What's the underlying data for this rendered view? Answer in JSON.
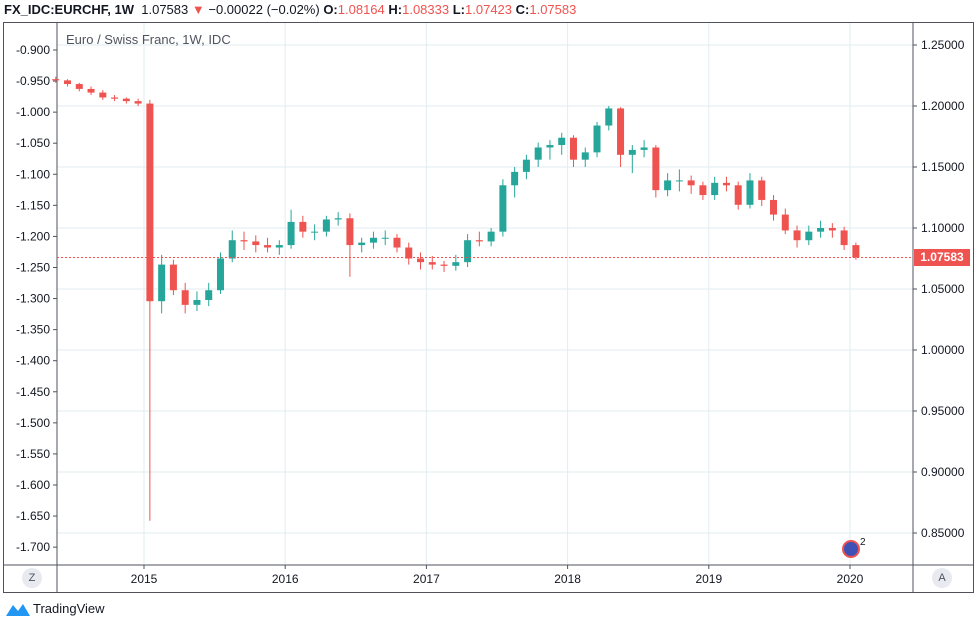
{
  "header": {
    "symbol": "FX_IDC:EURCHF, 1W",
    "last": "1.07583",
    "change": "−0.00022 (−0.02%)",
    "o_label": "O:",
    "o": "1.08164",
    "h_label": "H:",
    "h": "1.08333",
    "l_label": "L:",
    "l": "1.07423",
    "c_label": "C:",
    "c": "1.07583",
    "direction_icon": "triangle-down-icon"
  },
  "legend": "Euro / Swiss Franc, 1W, IDC",
  "price_tag": "1.07583",
  "corner_left": "Z",
  "corner_right": "A",
  "events_badge": "2",
  "brand": "TradingView",
  "colors": {
    "up": "#26a69a",
    "down": "#ef5350",
    "grid": "#e1ecf2"
  },
  "chart_data": {
    "type": "candlestick",
    "interval": "1W",
    "x_ticks": [
      "2015",
      "2016",
      "2017",
      "2018",
      "2019",
      "2020"
    ],
    "y_right_ticks": [
      "1.25000",
      "1.20000",
      "1.15000",
      "1.10000",
      "1.05000",
      "1.00000",
      "0.95000",
      "0.90000",
      "0.85000"
    ],
    "y_right_range": [
      0.836,
      1.264
    ],
    "y_left_ticks": [
      "-0.900",
      "-0.950",
      "-1.000",
      "-1.050",
      "-1.100",
      "-1.150",
      "-1.200",
      "-1.250",
      "-1.300",
      "-1.350",
      "-1.400",
      "-1.450",
      "-1.500",
      "-1.550",
      "-1.600",
      "-1.650",
      "-1.700"
    ],
    "last_price": 1.07583,
    "grid": true,
    "candles_columns": [
      "date",
      "open",
      "high",
      "low",
      "close"
    ],
    "candles": [
      [
        "2014-05",
        1.222,
        1.224,
        1.219,
        1.221
      ],
      [
        "2014-06",
        1.221,
        1.222,
        1.216,
        1.218
      ],
      [
        "2014-07",
        1.218,
        1.219,
        1.212,
        1.214
      ],
      [
        "2014-08",
        1.214,
        1.216,
        1.209,
        1.211
      ],
      [
        "2014-09",
        1.211,
        1.213,
        1.205,
        1.207
      ],
      [
        "2014-10",
        1.207,
        1.209,
        1.204,
        1.206
      ],
      [
        "2014-11",
        1.206,
        1.207,
        1.202,
        1.204
      ],
      [
        "2014-12",
        1.204,
        1.206,
        1.2,
        1.202
      ],
      [
        "2015-01",
        1.202,
        1.205,
        0.86,
        1.04
      ],
      [
        "2015-02",
        1.04,
        1.078,
        1.03,
        1.07
      ],
      [
        "2015-03",
        1.07,
        1.074,
        1.045,
        1.049
      ],
      [
        "2015-04",
        1.049,
        1.055,
        1.03,
        1.037
      ],
      [
        "2015-05",
        1.037,
        1.048,
        1.032,
        1.041
      ],
      [
        "2015-06",
        1.041,
        1.055,
        1.036,
        1.049
      ],
      [
        "2015-07",
        1.049,
        1.08,
        1.046,
        1.075
      ],
      [
        "2015-08",
        1.075,
        1.098,
        1.072,
        1.09
      ],
      [
        "2015-09",
        1.09,
        1.097,
        1.082,
        1.089
      ],
      [
        "2015-10",
        1.089,
        1.094,
        1.08,
        1.086
      ],
      [
        "2015-11",
        1.086,
        1.092,
        1.08,
        1.084
      ],
      [
        "2015-12",
        1.084,
        1.09,
        1.078,
        1.086
      ],
      [
        "2016-01",
        1.086,
        1.115,
        1.083,
        1.105
      ],
      [
        "2016-02",
        1.105,
        1.11,
        1.092,
        1.097
      ],
      [
        "2016-03",
        1.097,
        1.103,
        1.09,
        1.097
      ],
      [
        "2016-04",
        1.097,
        1.11,
        1.093,
        1.107
      ],
      [
        "2016-05",
        1.107,
        1.113,
        1.102,
        1.108
      ],
      [
        "2016-06",
        1.108,
        1.112,
        1.06,
        1.086
      ],
      [
        "2016-07",
        1.086,
        1.092,
        1.08,
        1.088
      ],
      [
        "2016-08",
        1.088,
        1.097,
        1.083,
        1.092
      ],
      [
        "2016-09",
        1.092,
        1.098,
        1.086,
        1.092
      ],
      [
        "2016-10",
        1.092,
        1.095,
        1.08,
        1.084
      ],
      [
        "2016-11",
        1.084,
        1.088,
        1.07,
        1.075
      ],
      [
        "2016-12",
        1.075,
        1.08,
        1.066,
        1.072
      ],
      [
        "2017-01",
        1.072,
        1.077,
        1.066,
        1.07
      ],
      [
        "2017-02",
        1.07,
        1.073,
        1.064,
        1.069
      ],
      [
        "2017-03",
        1.069,
        1.078,
        1.065,
        1.072
      ],
      [
        "2017-04",
        1.072,
        1.095,
        1.068,
        1.09
      ],
      [
        "2017-05",
        1.09,
        1.097,
        1.085,
        1.089
      ],
      [
        "2017-06",
        1.089,
        1.1,
        1.085,
        1.097
      ],
      [
        "2017-07",
        1.097,
        1.14,
        1.093,
        1.135
      ],
      [
        "2017-08",
        1.135,
        1.15,
        1.125,
        1.146
      ],
      [
        "2017-09",
        1.146,
        1.16,
        1.14,
        1.156
      ],
      [
        "2017-10",
        1.156,
        1.17,
        1.15,
        1.166
      ],
      [
        "2017-11",
        1.166,
        1.172,
        1.156,
        1.168
      ],
      [
        "2017-12",
        1.168,
        1.178,
        1.16,
        1.174
      ],
      [
        "2018-01",
        1.174,
        1.176,
        1.15,
        1.156
      ],
      [
        "2018-02",
        1.156,
        1.166,
        1.15,
        1.162
      ],
      [
        "2018-03",
        1.162,
        1.187,
        1.158,
        1.184
      ],
      [
        "2018-04",
        1.184,
        1.2,
        1.18,
        1.198
      ],
      [
        "2018-05",
        1.198,
        1.199,
        1.15,
        1.16
      ],
      [
        "2018-06",
        1.16,
        1.168,
        1.145,
        1.164
      ],
      [
        "2018-07",
        1.164,
        1.172,
        1.158,
        1.166
      ],
      [
        "2018-08",
        1.166,
        1.168,
        1.125,
        1.131
      ],
      [
        "2018-09",
        1.131,
        1.145,
        1.126,
        1.139
      ],
      [
        "2018-10",
        1.139,
        1.148,
        1.13,
        1.139
      ],
      [
        "2018-11",
        1.139,
        1.143,
        1.128,
        1.135
      ],
      [
        "2018-12",
        1.135,
        1.138,
        1.123,
        1.127
      ],
      [
        "2019-01",
        1.127,
        1.142,
        1.123,
        1.137
      ],
      [
        "2019-02",
        1.137,
        1.142,
        1.13,
        1.135
      ],
      [
        "2019-03",
        1.135,
        1.138,
        1.115,
        1.119
      ],
      [
        "2019-04",
        1.119,
        1.145,
        1.116,
        1.139
      ],
      [
        "2019-05",
        1.139,
        1.142,
        1.118,
        1.123
      ],
      [
        "2019-06",
        1.123,
        1.127,
        1.106,
        1.111
      ],
      [
        "2019-07",
        1.111,
        1.116,
        1.095,
        1.098
      ],
      [
        "2019-08",
        1.098,
        1.102,
        1.084,
        1.09
      ],
      [
        "2019-09",
        1.09,
        1.102,
        1.086,
        1.097
      ],
      [
        "2019-10",
        1.097,
        1.106,
        1.092,
        1.1
      ],
      [
        "2019-11",
        1.1,
        1.104,
        1.092,
        1.098
      ],
      [
        "2019-12",
        1.098,
        1.101,
        1.082,
        1.086
      ],
      [
        "2020-01",
        1.086,
        1.088,
        1.074,
        1.07583
      ]
    ]
  }
}
